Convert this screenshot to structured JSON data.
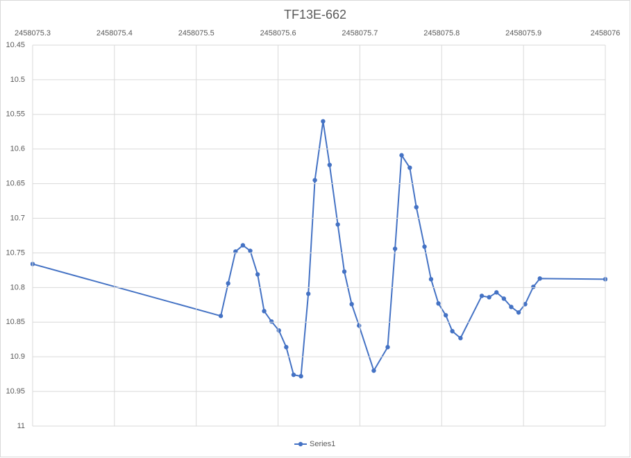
{
  "chart_data": {
    "type": "line",
    "title": "TF13E-662",
    "x": [
      2458075.3,
      2458075.53,
      2458075.539,
      2458075.548,
      2458075.557,
      2458075.566,
      2458075.575,
      2458075.583,
      2458075.592,
      2458075.601,
      2458075.61,
      2458075.619,
      2458075.628,
      2458075.637,
      2458075.645,
      2458075.655,
      2458075.663,
      2458075.673,
      2458075.681,
      2458075.69,
      2458075.699,
      2458075.717,
      2458075.734,
      2458075.743,
      2458075.751,
      2458075.761,
      2458075.769,
      2458075.779,
      2458075.787,
      2458075.796,
      2458075.805,
      2458075.813,
      2458075.823,
      2458075.849,
      2458075.858,
      2458075.867,
      2458075.876,
      2458075.885,
      2458075.894,
      2458075.902,
      2458075.912,
      2458075.92,
      2458076.0
    ],
    "series": [
      {
        "name": "Series1",
        "color": "#4472c4",
        "values": [
          10.766,
          10.841,
          10.794,
          10.748,
          10.739,
          10.747,
          10.781,
          10.834,
          10.849,
          10.862,
          10.886,
          10.926,
          10.928,
          10.809,
          10.645,
          10.56,
          10.623,
          10.709,
          10.777,
          10.824,
          10.855,
          10.92,
          10.886,
          10.744,
          10.609,
          10.627,
          10.684,
          10.741,
          10.788,
          10.823,
          10.84,
          10.863,
          10.873,
          10.812,
          10.814,
          10.807,
          10.816,
          10.828,
          10.836,
          10.824,
          10.799,
          10.787,
          10.788
        ]
      }
    ],
    "xlim": [
      2458075.3,
      2458076
    ],
    "xticks": [
      2458075.3,
      2458075.4,
      2458075.5,
      2458075.6,
      2458075.7,
      2458075.8,
      2458075.9,
      2458076
    ],
    "ylim": [
      10.45,
      11
    ],
    "yticks": [
      10.45,
      10.5,
      10.55,
      10.6,
      10.65,
      10.7,
      10.75,
      10.8,
      10.85,
      10.9,
      10.95,
      11
    ],
    "y_inverted": true,
    "x_axis_position": "top",
    "grid": true,
    "legend": "bottom"
  }
}
